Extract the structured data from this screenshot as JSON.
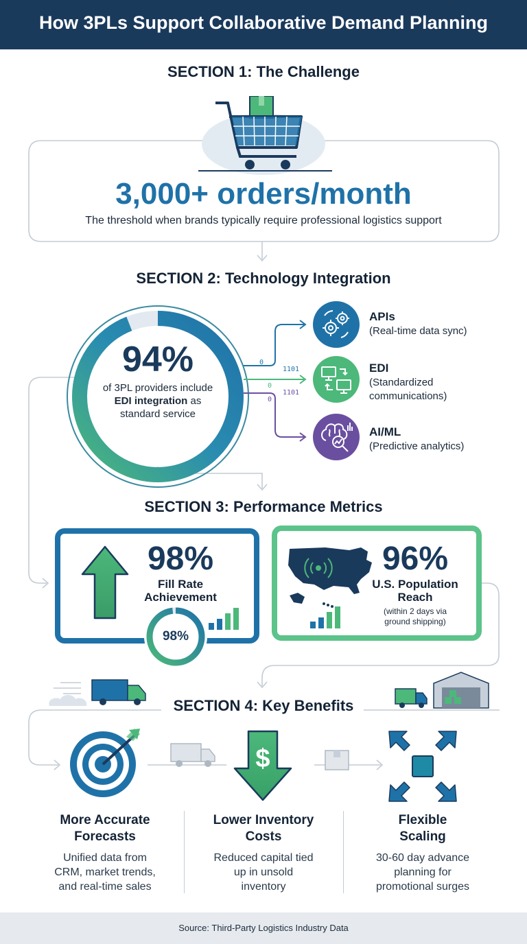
{
  "header": {
    "title": "How 3PLs Support Collaborative Demand Planning"
  },
  "section1": {
    "heading": "SECTION 1: The Challenge",
    "stat": "3,000+ orders/month",
    "description": "The threshold when brands typically require professional logistics support",
    "icon": "shopping-cart-icon"
  },
  "section2": {
    "heading": "SECTION 2: Technology Integration",
    "stat": "94%",
    "ring_fill_percent": 94,
    "desc_before": "of 3PL providers include",
    "desc_bold": "EDI integration",
    "desc_after": "as",
    "desc_end": "standard service",
    "binary": [
      "0",
      "1101",
      "0",
      "1101",
      "0"
    ],
    "items": [
      {
        "label": "APIs",
        "sub": "(Real-time data sync)",
        "icon": "gears-icon",
        "color": "#1f72a8"
      },
      {
        "label": "EDI",
        "sub1": "(Standardized",
        "sub2": "communications)",
        "icon": "computers-icon",
        "color": "#4cb87a"
      },
      {
        "label": "AI/ML",
        "sub": "(Predictive analytics)",
        "icon": "brain-icon",
        "color": "#6a4fa0"
      }
    ]
  },
  "section3": {
    "heading": "SECTION 3: Performance Metrics",
    "fill_rate": {
      "value": "98%",
      "label1": "Fill Rate",
      "label2": "Achievement",
      "gauge_value": "98%",
      "gauge_percent": 98
    },
    "reach": {
      "value": "96%",
      "label1": "U.S. Population",
      "label2": "Reach",
      "note1": "(within 2 days via",
      "note2": "ground shipping)"
    }
  },
  "section4": {
    "heading": "SECTION 4: Key Benefits",
    "benefits": [
      {
        "title1": "More Accurate",
        "title2": "Forecasts",
        "desc1": "Unified data from",
        "desc2": "CRM, market trends,",
        "desc3": "and real-time sales",
        "icon": "target-icon"
      },
      {
        "title1": "Lower Inventory",
        "title2": "Costs",
        "desc1": "Reduced capital tied",
        "desc2": "up in unsold",
        "desc3": "inventory",
        "icon": "dollar-down-arrow-icon"
      },
      {
        "title1": "Flexible",
        "title2": "Scaling",
        "desc1": "30-60 day advance",
        "desc2": "planning for",
        "desc3": "promotional surges",
        "icon": "expand-arrows-icon"
      }
    ]
  },
  "footer": {
    "source": "Source: Third-Party Logistics Industry Data"
  },
  "colors": {
    "navy": "#1a3a5c",
    "blue": "#1f72a8",
    "green": "#4cb87a",
    "purple": "#6a4fa0"
  }
}
